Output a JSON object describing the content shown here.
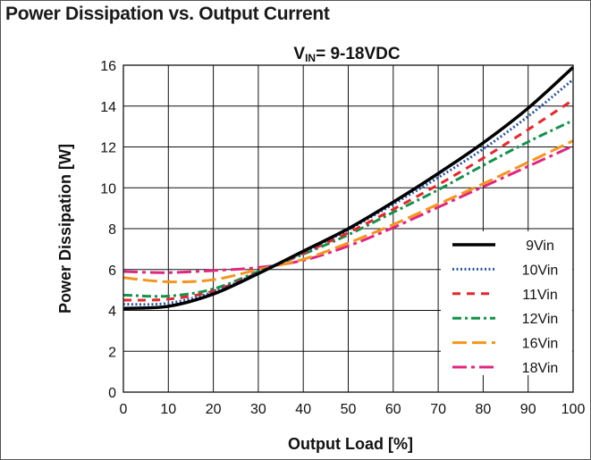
{
  "chart_data": {
    "type": "line",
    "title": "Power Dissipation vs. Output Current",
    "subtitle": {
      "main": "V",
      "sub": "IN",
      "rest": "= 9-18VDC"
    },
    "xlabel": "Output Load [%]",
    "ylabel": "Power Dissipation [W]",
    "xlim": [
      0,
      100
    ],
    "ylim": [
      0,
      16
    ],
    "x_ticks": [
      "0",
      "10",
      "20",
      "30",
      "40",
      "50",
      "60",
      "70",
      "80",
      "90",
      "100"
    ],
    "y_ticks": [
      "0",
      "2",
      "4",
      "6",
      "8",
      "10",
      "12",
      "14",
      "16"
    ],
    "grid": true,
    "legend_position": "bottom-right",
    "x": [
      0,
      10,
      20,
      30,
      40,
      50,
      60,
      70,
      80,
      90,
      100
    ],
    "series": [
      {
        "name": "9Vin",
        "color": "#000000",
        "dash": "solid",
        "values": [
          4.1,
          4.2,
          4.8,
          5.8,
          6.9,
          8.0,
          9.3,
          10.7,
          12.2,
          13.9,
          15.9
        ]
      },
      {
        "name": "10Vin",
        "color": "#2b57a8",
        "dash": "dotted",
        "values": [
          4.3,
          4.35,
          4.9,
          5.85,
          6.85,
          7.95,
          9.2,
          10.5,
          11.9,
          13.5,
          15.3
        ]
      },
      {
        "name": "11Vin",
        "color": "#e8262b",
        "dash": "dashed",
        "values": [
          4.5,
          4.55,
          4.95,
          5.85,
          6.8,
          7.8,
          8.95,
          10.15,
          11.45,
          12.85,
          14.3
        ]
      },
      {
        "name": "12Vin",
        "color": "#12934a",
        "dash": "dashdot",
        "values": [
          4.75,
          4.7,
          5.05,
          5.9,
          6.75,
          7.7,
          8.8,
          9.9,
          11.1,
          12.25,
          13.3
        ]
      },
      {
        "name": "16Vin",
        "color": "#f7941d",
        "dash": "longdash",
        "values": [
          5.6,
          5.4,
          5.5,
          6.0,
          6.5,
          7.3,
          8.2,
          9.2,
          10.2,
          11.25,
          12.3
        ]
      },
      {
        "name": "18Vin",
        "color": "#e2257e",
        "dash": "longdashdot",
        "values": [
          5.9,
          5.85,
          5.95,
          6.1,
          6.45,
          7.15,
          8.05,
          9.05,
          10.05,
          11.05,
          12.05
        ]
      }
    ]
  }
}
